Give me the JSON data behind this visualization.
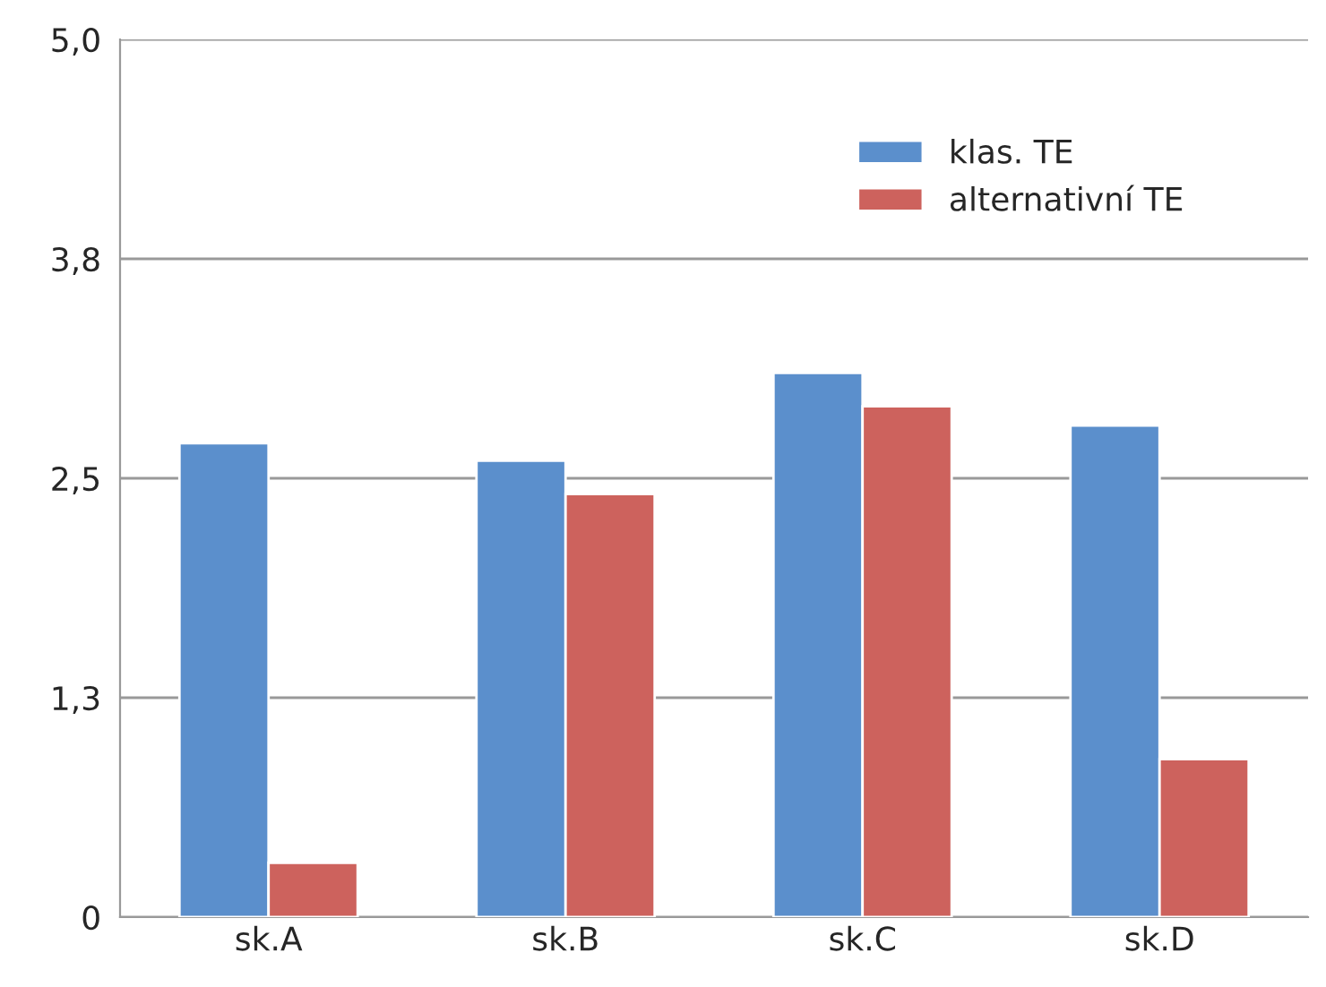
{
  "chart_data": {
    "type": "bar",
    "categories": [
      "sk.A",
      "sk.B",
      "sk.C",
      "sk.D"
    ],
    "series": [
      {
        "name": "klas. TE",
        "color": "#5b8fcc",
        "values": [
          2.7,
          2.6,
          3.1,
          2.8
        ]
      },
      {
        "name": "alternativní TE",
        "color": "#cd625d",
        "values": [
          0.31,
          2.41,
          2.91,
          0.9
        ]
      }
    ],
    "ylim": [
      0,
      5
    ],
    "yticks": [
      {
        "value": 0,
        "label": "0"
      },
      {
        "value": 1.25,
        "label": "1,3"
      },
      {
        "value": 2.5,
        "label": "2,5"
      },
      {
        "value": 3.75,
        "label": "3,8"
      },
      {
        "value": 5,
        "label": "5,0"
      }
    ],
    "grid": "y",
    "legend": "top right"
  }
}
